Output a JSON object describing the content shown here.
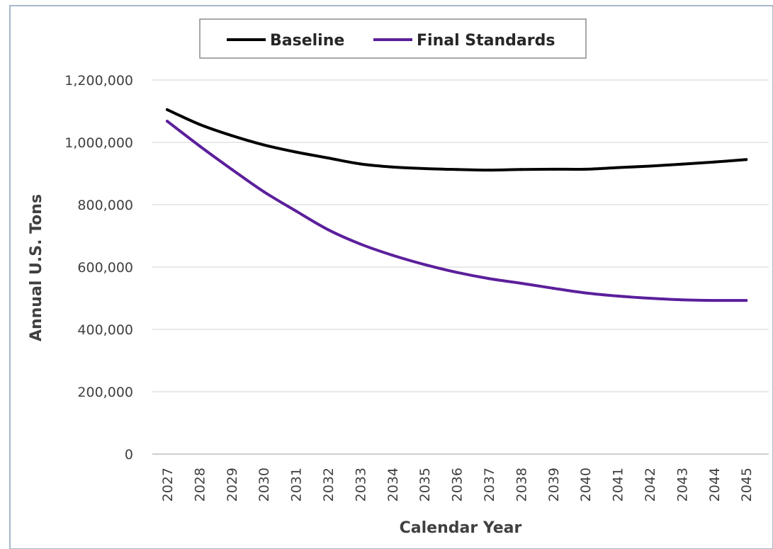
{
  "chart_data": {
    "type": "line",
    "title": "",
    "xlabel": "Calendar Year",
    "ylabel": "Annual U.S. Tons",
    "categories": [
      "2027",
      "2028",
      "2029",
      "2030",
      "2031",
      "2032",
      "2033",
      "2034",
      "2035",
      "2036",
      "2037",
      "2038",
      "2039",
      "2040",
      "2041",
      "2042",
      "2043",
      "2044",
      "2045"
    ],
    "ylim": [
      0,
      1200000
    ],
    "yticks": [
      0,
      200000,
      400000,
      600000,
      800000,
      1000000,
      1200000
    ],
    "ytick_labels": [
      "0",
      "200,000",
      "400,000",
      "600,000",
      "800,000",
      "1,000,000",
      "1,200,000"
    ],
    "grid": true,
    "legend_position": "top",
    "series": [
      {
        "name": "Baseline",
        "color": "#000000",
        "values": [
          1105000,
          1058000,
          1022000,
          992000,
          969000,
          950000,
          931000,
          921000,
          916000,
          913000,
          911000,
          913000,
          914000,
          914000,
          919000,
          924000,
          930000,
          937000,
          945000
        ]
      },
      {
        "name": "Final Standards",
        "color": "#5b1f9b",
        "values": [
          1068000,
          989000,
          914000,
          842000,
          780000,
          720000,
          674000,
          638000,
          608000,
          583000,
          563000,
          548000,
          532000,
          517000,
          507000,
          500000,
          495000,
          493000,
          493000
        ]
      }
    ]
  }
}
